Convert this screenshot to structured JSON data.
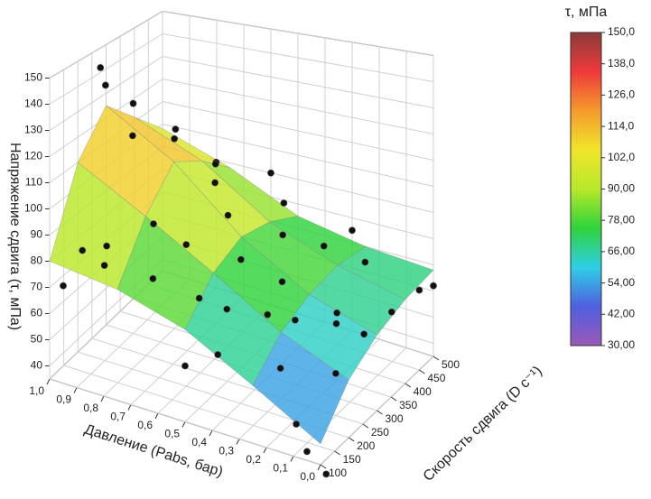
{
  "chart_data": {
    "type": "surface3d",
    "zlabel": "Напряжение сдвига (τ, мПа)",
    "xlabel": "Давление (Pabs, бар)",
    "ylabel": "Скорость сдвига (D c⁻¹)",
    "xlim": [
      0,
      1
    ],
    "xticks": [
      {
        "value": 0,
        "label": "0,0"
      },
      {
        "value": 0.1,
        "label": "0,1"
      },
      {
        "value": 0.2,
        "label": "0,2"
      },
      {
        "value": 0.3,
        "label": "0,3"
      },
      {
        "value": 0.4,
        "label": "0,4"
      },
      {
        "value": 0.5,
        "label": "0,5"
      },
      {
        "value": 0.6,
        "label": "0,6"
      },
      {
        "value": 0.7,
        "label": "0,7"
      },
      {
        "value": 0.8,
        "label": "0,8"
      },
      {
        "value": 0.9,
        "label": "0,9"
      },
      {
        "value": 1,
        "label": "1,0"
      }
    ],
    "ylim": [
      100,
      500
    ],
    "yticks": [
      100,
      150,
      200,
      250,
      300,
      350,
      400,
      450,
      500
    ],
    "zlim": [
      35,
      150
    ],
    "zticks": [
      40,
      50,
      60,
      70,
      80,
      90,
      100,
      110,
      120,
      130,
      140,
      150
    ],
    "grid": true,
    "colormap": [
      "#9b59b6",
      "#4f5fe0",
      "#2ecfe6",
      "#2fd33a",
      "#b8e82a",
      "#f0e62a",
      "#f59a2c",
      "#ef3a3a",
      "#8b3a3a"
    ],
    "surface": {
      "x": [
        0,
        0.25,
        0.5,
        0.75,
        1
      ],
      "y": [
        100,
        200,
        300,
        400,
        500
      ],
      "z": [
        [
          42,
          55,
          62,
          66,
          68
        ],
        [
          55,
          65,
          70,
          72,
          70
        ],
        [
          68,
          80,
          85,
          82,
          75
        ],
        [
          76,
          95,
          108,
          100,
          88
        ],
        [
          80,
          110,
          125,
          112,
          98
        ]
      ]
    },
    "points": {
      "x": [
        0.95,
        0.9,
        0.85,
        0.8,
        0.7,
        0.65,
        0.6,
        0.5,
        0.45,
        0.4,
        0.3,
        0.2,
        0.1,
        0.05,
        0.0,
        0.15,
        0.1,
        0.05,
        0.0,
        0.0,
        0.2,
        0.3,
        0.4,
        0.5,
        0.6,
        0.7,
        0.8,
        0.9,
        0.95,
        1.0,
        0.85,
        0.75,
        0.9,
        0.25,
        0.35,
        0.55,
        0.65,
        0.45,
        0.1,
        0.2,
        0.3,
        0.5
      ],
      "y": [
        100,
        120,
        150,
        110,
        180,
        130,
        200,
        150,
        250,
        120,
        200,
        150,
        110,
        100,
        120,
        300,
        350,
        400,
        450,
        500,
        450,
        400,
        350,
        450,
        500,
        400,
        350,
        300,
        250,
        280,
        250,
        450,
        450,
        250,
        300,
        300,
        350,
        200,
        250,
        350,
        500,
        100
      ],
      "z": [
        72,
        85,
        78,
        90,
        95,
        80,
        88,
        75,
        82,
        60,
        70,
        58,
        45,
        38,
        30,
        62,
        55,
        60,
        65,
        62,
        70,
        78,
        84,
        85,
        90,
        100,
        112,
        128,
        138,
        142,
        120,
        95,
        105,
        65,
        72,
        92,
        98,
        68,
        50,
        60,
        75,
        55
      ]
    },
    "colorbar": {
      "title": "τ, мПа",
      "lim": [
        30,
        150
      ],
      "ticks": [
        {
          "value": 150,
          "label": "150,0"
        },
        {
          "value": 138,
          "label": "138,0"
        },
        {
          "value": 126,
          "label": "126,0"
        },
        {
          "value": 114,
          "label": "114,0"
        },
        {
          "value": 102,
          "label": "102,0"
        },
        {
          "value": 90,
          "label": "90,00"
        },
        {
          "value": 78,
          "label": "78,00"
        },
        {
          "value": 66,
          "label": "66,00"
        },
        {
          "value": 54,
          "label": "54,00"
        },
        {
          "value": 42,
          "label": "42,00"
        },
        {
          "value": 30,
          "label": "30,00"
        }
      ]
    }
  }
}
